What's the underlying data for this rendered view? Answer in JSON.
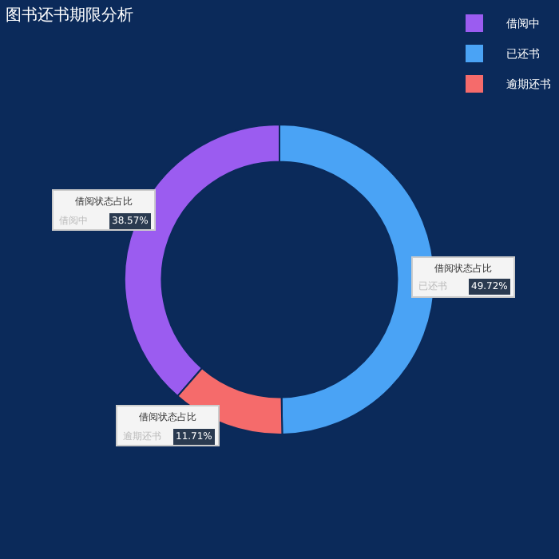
{
  "chart_data": {
    "type": "donut",
    "title": "图书还书期限分析",
    "categories": [
      "借阅中",
      "已还书",
      "逾期还书"
    ],
    "values": [
      38.57,
      49.72,
      11.71
    ],
    "colors": [
      "#9b5cf0",
      "#4aa3f5",
      "#f56b6b"
    ],
    "value_labels": [
      "38.57%",
      "49.72%",
      "11.71%"
    ],
    "annotations": [
      "借阅状态占比",
      "借阅状态占比",
      "借阅状态占比"
    ],
    "legend": "top right"
  }
}
